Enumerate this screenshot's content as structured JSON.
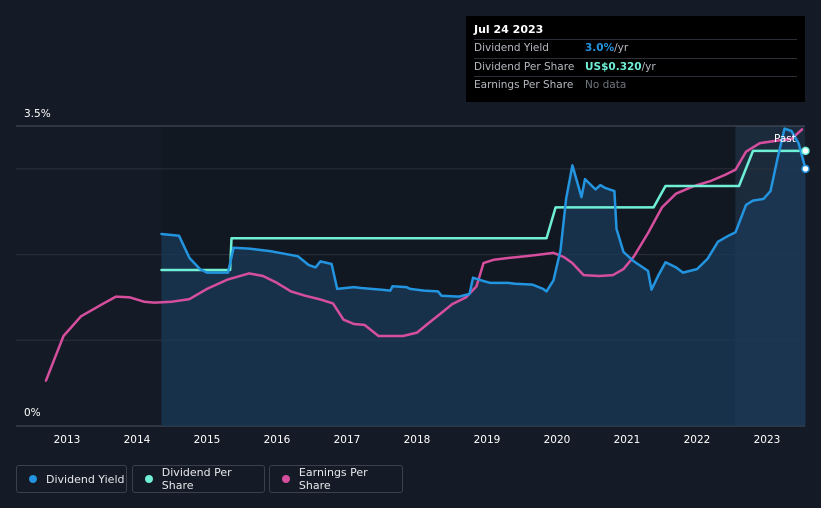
{
  "tooltip": {
    "date": "Jul 24 2023",
    "rows": [
      {
        "label": "Dividend Yield",
        "value": "3.0%",
        "suffix": " /yr",
        "color": "#2394df"
      },
      {
        "label": "Dividend Per Share",
        "value": "US$0.320",
        "suffix": " /yr",
        "color": "#6ff0d6"
      },
      {
        "label": "Earnings Per Share",
        "value": "No data",
        "suffix": "",
        "color": "#70757d"
      }
    ]
  },
  "past_label": "Past",
  "legend": [
    {
      "label": "Dividend Yield",
      "color": "#2394df"
    },
    {
      "label": "Dividend Per Share",
      "color": "#6ff0d6"
    },
    {
      "label": "Earnings Per Share",
      "color": "#d64f9e"
    }
  ],
  "chart_data": {
    "type": "line",
    "title": "",
    "xlabel": "",
    "ylabel": "",
    "y_ticks": [
      "3.5%",
      "0%"
    ],
    "ylim": [
      0,
      3.5
    ],
    "xlim": [
      2012.7,
      2023.58
    ],
    "x_ticks": [
      "2013",
      "2014",
      "2015",
      "2016",
      "2017",
      "2018",
      "2019",
      "2020",
      "2021",
      "2022",
      "2023"
    ],
    "grid": true,
    "forecast_region_start": 2022.55,
    "series": [
      {
        "name": "Dividend Yield",
        "color": "#2394df",
        "unit": "%",
        "filled": true,
        "points": [
          [
            2014.35,
            2.24
          ],
          [
            2014.6,
            2.22
          ],
          [
            2014.75,
            1.96
          ],
          [
            2014.9,
            1.83
          ],
          [
            2015.0,
            1.79
          ],
          [
            2015.3,
            1.79
          ],
          [
            2015.38,
            2.08
          ],
          [
            2015.6,
            2.07
          ],
          [
            2015.9,
            2.04
          ],
          [
            2016.1,
            2.01
          ],
          [
            2016.3,
            1.98
          ],
          [
            2016.45,
            1.88
          ],
          [
            2016.55,
            1.85
          ],
          [
            2016.62,
            1.92
          ],
          [
            2016.78,
            1.89
          ],
          [
            2016.86,
            1.6
          ],
          [
            2017.1,
            1.62
          ],
          [
            2017.2,
            1.61
          ],
          [
            2017.5,
            1.59
          ],
          [
            2017.62,
            1.58
          ],
          [
            2017.65,
            1.63
          ],
          [
            2017.85,
            1.62
          ],
          [
            2017.9,
            1.6
          ],
          [
            2018.1,
            1.58
          ],
          [
            2018.3,
            1.57
          ],
          [
            2018.35,
            1.52
          ],
          [
            2018.6,
            1.51
          ],
          [
            2018.75,
            1.54
          ],
          [
            2018.8,
            1.73
          ],
          [
            2018.95,
            1.69
          ],
          [
            2019.05,
            1.67
          ],
          [
            2019.3,
            1.67
          ],
          [
            2019.4,
            1.66
          ],
          [
            2019.65,
            1.65
          ],
          [
            2019.8,
            1.6
          ],
          [
            2019.85,
            1.57
          ],
          [
            2019.95,
            1.7
          ],
          [
            2020.05,
            2.05
          ],
          [
            2020.13,
            2.65
          ],
          [
            2020.22,
            3.04
          ],
          [
            2020.35,
            2.67
          ],
          [
            2020.4,
            2.88
          ],
          [
            2020.5,
            2.8
          ],
          [
            2020.55,
            2.76
          ],
          [
            2020.62,
            2.81
          ],
          [
            2020.68,
            2.78
          ],
          [
            2020.75,
            2.76
          ],
          [
            2020.82,
            2.74
          ],
          [
            2020.85,
            2.3
          ],
          [
            2020.95,
            2.03
          ],
          [
            2021.1,
            1.92
          ],
          [
            2021.3,
            1.81
          ],
          [
            2021.35,
            1.59
          ],
          [
            2021.45,
            1.76
          ],
          [
            2021.55,
            1.91
          ],
          [
            2021.7,
            1.85
          ],
          [
            2021.8,
            1.79
          ],
          [
            2022.0,
            1.83
          ],
          [
            2022.15,
            1.95
          ],
          [
            2022.3,
            2.15
          ],
          [
            2022.45,
            2.22
          ],
          [
            2022.55,
            2.26
          ],
          [
            2022.7,
            2.58
          ],
          [
            2022.8,
            2.63
          ],
          [
            2022.95,
            2.65
          ],
          [
            2023.05,
            2.74
          ],
          [
            2023.15,
            3.12
          ],
          [
            2023.25,
            3.47
          ],
          [
            2023.35,
            3.44
          ],
          [
            2023.45,
            3.3
          ],
          [
            2023.55,
            3.0
          ]
        ]
      },
      {
        "name": "Dividend Per Share",
        "color": "#6ff0d6",
        "unit": "US$",
        "points": [
          [
            2014.35,
            1.82
          ],
          [
            2015.33,
            1.82
          ],
          [
            2015.35,
            2.19
          ],
          [
            2019.85,
            2.19
          ],
          [
            2019.98,
            2.55
          ],
          [
            2021.38,
            2.55
          ],
          [
            2021.55,
            2.8
          ],
          [
            2022.6,
            2.8
          ],
          [
            2022.8,
            3.21
          ],
          [
            2023.55,
            3.21
          ]
        ]
      },
      {
        "name": "Earnings Per Share",
        "color": "#d64f9e",
        "unit": "US$",
        "points": [
          [
            2012.7,
            0.53
          ],
          [
            2012.82,
            0.78
          ],
          [
            2012.95,
            1.05
          ],
          [
            2013.2,
            1.28
          ],
          [
            2013.5,
            1.42
          ],
          [
            2013.7,
            1.51
          ],
          [
            2013.9,
            1.5
          ],
          [
            2014.1,
            1.45
          ],
          [
            2014.25,
            1.44
          ],
          [
            2014.5,
            1.45
          ],
          [
            2014.75,
            1.48
          ],
          [
            2015.0,
            1.6
          ],
          [
            2015.3,
            1.71
          ],
          [
            2015.6,
            1.78
          ],
          [
            2015.8,
            1.75
          ],
          [
            2016.0,
            1.67
          ],
          [
            2016.2,
            1.57
          ],
          [
            2016.4,
            1.52
          ],
          [
            2016.6,
            1.48
          ],
          [
            2016.8,
            1.43
          ],
          [
            2016.95,
            1.24
          ],
          [
            2017.1,
            1.19
          ],
          [
            2017.25,
            1.18
          ],
          [
            2017.45,
            1.05
          ],
          [
            2017.6,
            1.05
          ],
          [
            2017.8,
            1.05
          ],
          [
            2018.0,
            1.09
          ],
          [
            2018.15,
            1.19
          ],
          [
            2018.35,
            1.32
          ],
          [
            2018.5,
            1.42
          ],
          [
            2018.7,
            1.5
          ],
          [
            2018.85,
            1.63
          ],
          [
            2018.95,
            1.9
          ],
          [
            2019.1,
            1.94
          ],
          [
            2019.3,
            1.96
          ],
          [
            2019.55,
            1.98
          ],
          [
            2019.75,
            2.0
          ],
          [
            2019.95,
            2.02
          ],
          [
            2020.1,
            1.97
          ],
          [
            2020.22,
            1.9
          ],
          [
            2020.38,
            1.76
          ],
          [
            2020.6,
            1.75
          ],
          [
            2020.8,
            1.76
          ],
          [
            2020.95,
            1.83
          ],
          [
            2021.1,
            1.98
          ],
          [
            2021.3,
            2.25
          ],
          [
            2021.5,
            2.55
          ],
          [
            2021.7,
            2.71
          ],
          [
            2021.9,
            2.78
          ],
          [
            2022.0,
            2.81
          ],
          [
            2022.2,
            2.86
          ],
          [
            2022.4,
            2.93
          ],
          [
            2022.55,
            2.99
          ],
          [
            2022.7,
            3.2
          ],
          [
            2022.9,
            3.3
          ],
          [
            2023.15,
            3.33
          ],
          [
            2023.35,
            3.35
          ],
          [
            2023.5,
            3.46
          ]
        ]
      }
    ]
  }
}
